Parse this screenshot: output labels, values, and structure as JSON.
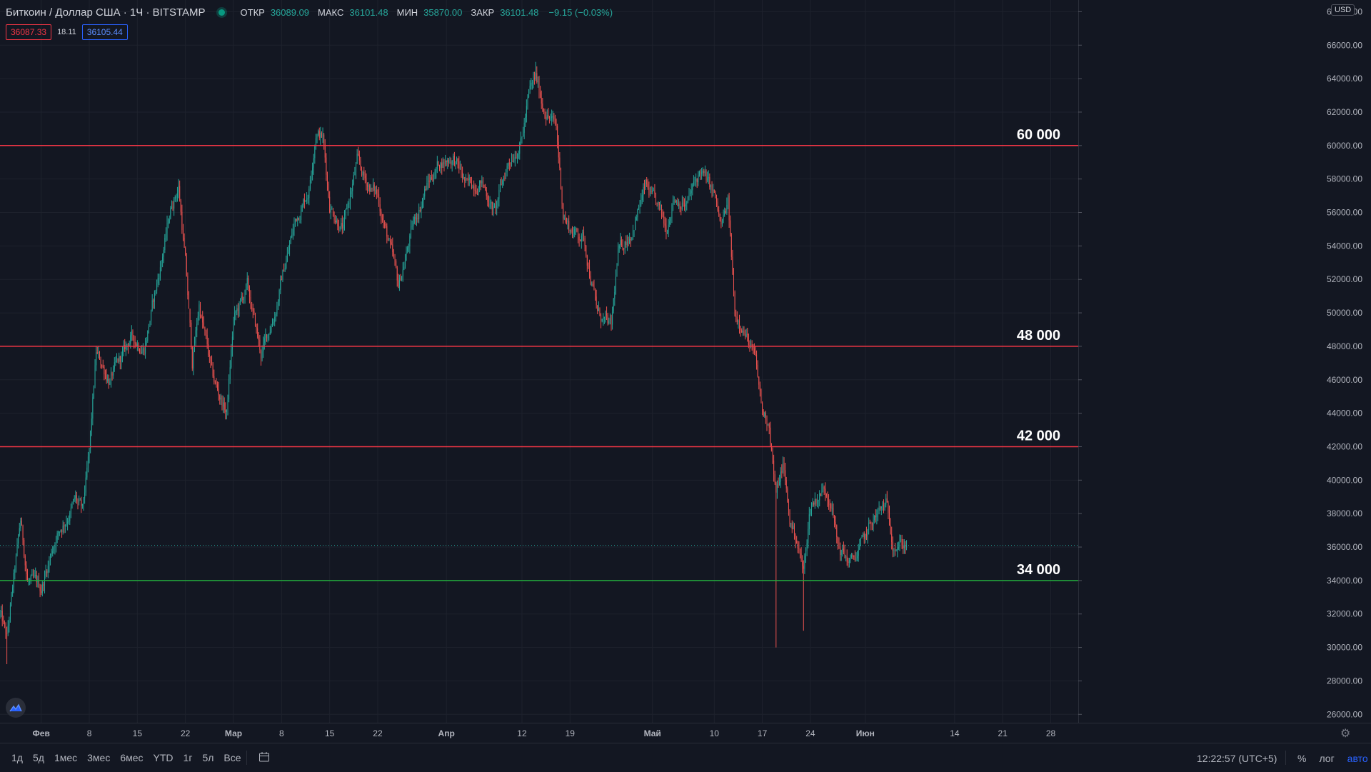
{
  "header": {
    "title": "Биткоин / Доллар США · 1Ч · BITSTAMP",
    "open_label": "ОТКР",
    "open": "36089.09",
    "high_label": "МАКС",
    "high": "36101.48",
    "low_label": "МИН",
    "low": "35870.00",
    "close_label": "ЗАКР",
    "close": "36101.48",
    "change": "−9.15 (−0.03%)",
    "sell_price": "36087.33",
    "spread": "18.11",
    "buy_price": "36105.44",
    "currency": "USD"
  },
  "bottom_bar": {
    "ranges": [
      "1д",
      "5д",
      "1мес",
      "3мес",
      "6мес",
      "YTD",
      "1г",
      "5л",
      "Все"
    ],
    "time": "12:22:57 (UTC+5)",
    "percent_label": "%",
    "log_label": "лог",
    "auto_label": "авто"
  },
  "colors": {
    "background": "#131722",
    "up": "#26a69a",
    "down": "#ef5350",
    "resistance": "#f23645",
    "support": "#22ab3c",
    "last_price": "#26a69a"
  },
  "chart_data": {
    "type": "candlestick",
    "title": "",
    "xlabel": "",
    "ylabel": "",
    "ylim": [
      25500,
      68700
    ],
    "x_ticks": [
      "Фев",
      "8",
      "15",
      "22",
      "Мар",
      "8",
      "15",
      "22",
      "Апр",
      "12",
      "19",
      "Май",
      "10",
      "17",
      "24",
      "Июн",
      "14",
      "21",
      "28"
    ],
    "y_ticks": [
      "26000.00",
      "28000.00",
      "30000.00",
      "32000.00",
      "34000.00",
      "36000.00",
      "38000.00",
      "40000.00",
      "42000.00",
      "44000.00",
      "46000.00",
      "48000.00",
      "50000.00",
      "52000.00",
      "54000.00",
      "56000.00",
      "58000.00",
      "60000.00",
      "62000.00",
      "64000.00",
      "66000.00",
      "68000.00"
    ],
    "grid": true,
    "last_price": {
      "value": 36101.48,
      "label": "36101.48"
    },
    "levels": [
      {
        "value": 60000,
        "label": "60 000",
        "axis_label": "60000.00",
        "kind": "resistance"
      },
      {
        "value": 48000,
        "label": "48 000",
        "axis_label": "48000.00",
        "kind": "resistance"
      },
      {
        "value": 42000,
        "label": "42 000",
        "axis_label": "42000.00",
        "kind": "resistance"
      },
      {
        "value": 34000,
        "label": "34 000",
        "axis_label": "34000.00",
        "kind": "support"
      }
    ],
    "price_path": [
      {
        "date": "2021-01-26",
        "price": 32000
      },
      {
        "date": "2021-01-27",
        "price": 30500
      },
      {
        "date": "2021-01-29",
        "price": 37500
      },
      {
        "date": "2021-01-30",
        "price": 34000
      },
      {
        "date": "2021-02-01",
        "price": 33500
      },
      {
        "date": "2021-02-03",
        "price": 36500
      },
      {
        "date": "2021-02-06",
        "price": 38800
      },
      {
        "date": "2021-02-07",
        "price": 38000
      },
      {
        "date": "2021-02-08",
        "price": 41500
      },
      {
        "date": "2021-02-09",
        "price": 47500
      },
      {
        "date": "2021-02-11",
        "price": 46000
      },
      {
        "date": "2021-02-13",
        "price": 47500
      },
      {
        "date": "2021-02-14",
        "price": 48500
      },
      {
        "date": "2021-02-16",
        "price": 48000
      },
      {
        "date": "2021-02-18",
        "price": 52000
      },
      {
        "date": "2021-02-20",
        "price": 56500
      },
      {
        "date": "2021-02-21",
        "price": 57600
      },
      {
        "date": "2021-02-22",
        "price": 53000
      },
      {
        "date": "2021-02-23",
        "price": 47000
      },
      {
        "date": "2021-02-24",
        "price": 50500
      },
      {
        "date": "2021-02-26",
        "price": 46000
      },
      {
        "date": "2021-02-28",
        "price": 44000
      },
      {
        "date": "2021-03-01",
        "price": 49500
      },
      {
        "date": "2021-03-03",
        "price": 51500
      },
      {
        "date": "2021-03-05",
        "price": 47500
      },
      {
        "date": "2021-03-07",
        "price": 50000
      },
      {
        "date": "2021-03-08",
        "price": 52000
      },
      {
        "date": "2021-03-10",
        "price": 55500
      },
      {
        "date": "2021-03-12",
        "price": 57500
      },
      {
        "date": "2021-03-13",
        "price": 61000
      },
      {
        "date": "2021-03-14",
        "price": 60500
      },
      {
        "date": "2021-03-15",
        "price": 56500
      },
      {
        "date": "2021-03-17",
        "price": 55000
      },
      {
        "date": "2021-03-19",
        "price": 59000
      },
      {
        "date": "2021-03-20",
        "price": 58000
      },
      {
        "date": "2021-03-22",
        "price": 57000
      },
      {
        "date": "2021-03-24",
        "price": 53500
      },
      {
        "date": "2021-03-25",
        "price": 51500
      },
      {
        "date": "2021-03-27",
        "price": 55000
      },
      {
        "date": "2021-03-29",
        "price": 57500
      },
      {
        "date": "2021-03-31",
        "price": 59000
      },
      {
        "date": "2021-04-02",
        "price": 59300
      },
      {
        "date": "2021-04-04",
        "price": 57500
      },
      {
        "date": "2021-04-06",
        "price": 58000
      },
      {
        "date": "2021-04-08",
        "price": 56000
      },
      {
        "date": "2021-04-10",
        "price": 59000
      },
      {
        "date": "2021-04-12",
        "price": 60500
      },
      {
        "date": "2021-04-13",
        "price": 63000
      },
      {
        "date": "2021-04-14",
        "price": 64000
      },
      {
        "date": "2021-04-15",
        "price": 62500
      },
      {
        "date": "2021-04-17",
        "price": 61000
      },
      {
        "date": "2021-04-18",
        "price": 56000
      },
      {
        "date": "2021-04-19",
        "price": 55000
      },
      {
        "date": "2021-04-21",
        "price": 54500
      },
      {
        "date": "2021-04-23",
        "price": 50000
      },
      {
        "date": "2021-04-25",
        "price": 49000
      },
      {
        "date": "2021-04-26",
        "price": 53500
      },
      {
        "date": "2021-04-28",
        "price": 55000
      },
      {
        "date": "2021-04-30",
        "price": 57500
      },
      {
        "date": "2021-05-02",
        "price": 56000
      },
      {
        "date": "2021-05-03",
        "price": 55000
      },
      {
        "date": "2021-05-04",
        "price": 57000
      },
      {
        "date": "2021-05-06",
        "price": 56500
      },
      {
        "date": "2021-05-08",
        "price": 58500
      },
      {
        "date": "2021-05-10",
        "price": 57000
      },
      {
        "date": "2021-05-11",
        "price": 55000
      },
      {
        "date": "2021-05-12",
        "price": 56500
      },
      {
        "date": "2021-05-13",
        "price": 50000
      },
      {
        "date": "2021-05-14",
        "price": 49500
      },
      {
        "date": "2021-05-16",
        "price": 47000
      },
      {
        "date": "2021-05-17",
        "price": 44000
      },
      {
        "date": "2021-05-18",
        "price": 43500
      },
      {
        "date": "2021-05-19",
        "price": 39000
      },
      {
        "date": "2021-05-20",
        "price": 41000
      },
      {
        "date": "2021-05-21",
        "price": 37500
      },
      {
        "date": "2021-05-22",
        "price": 36500
      },
      {
        "date": "2021-05-23",
        "price": 34500
      },
      {
        "date": "2021-05-24",
        "price": 38500
      },
      {
        "date": "2021-05-26",
        "price": 39500
      },
      {
        "date": "2021-05-27",
        "price": 39000
      },
      {
        "date": "2021-05-28",
        "price": 36000
      },
      {
        "date": "2021-05-30",
        "price": 35000
      },
      {
        "date": "2021-06-01",
        "price": 36500
      },
      {
        "date": "2021-06-02",
        "price": 37500
      },
      {
        "date": "2021-06-04",
        "price": 38500
      },
      {
        "date": "2021-06-05",
        "price": 36500
      },
      {
        "date": "2021-06-07",
        "price": 36100
      }
    ],
    "extremes": [
      {
        "date": "2021-01-27",
        "low": 29000
      },
      {
        "date": "2021-04-14",
        "high": 65000
      },
      {
        "date": "2021-05-19",
        "low": 30000
      },
      {
        "date": "2021-05-23",
        "low": 31000
      }
    ]
  }
}
